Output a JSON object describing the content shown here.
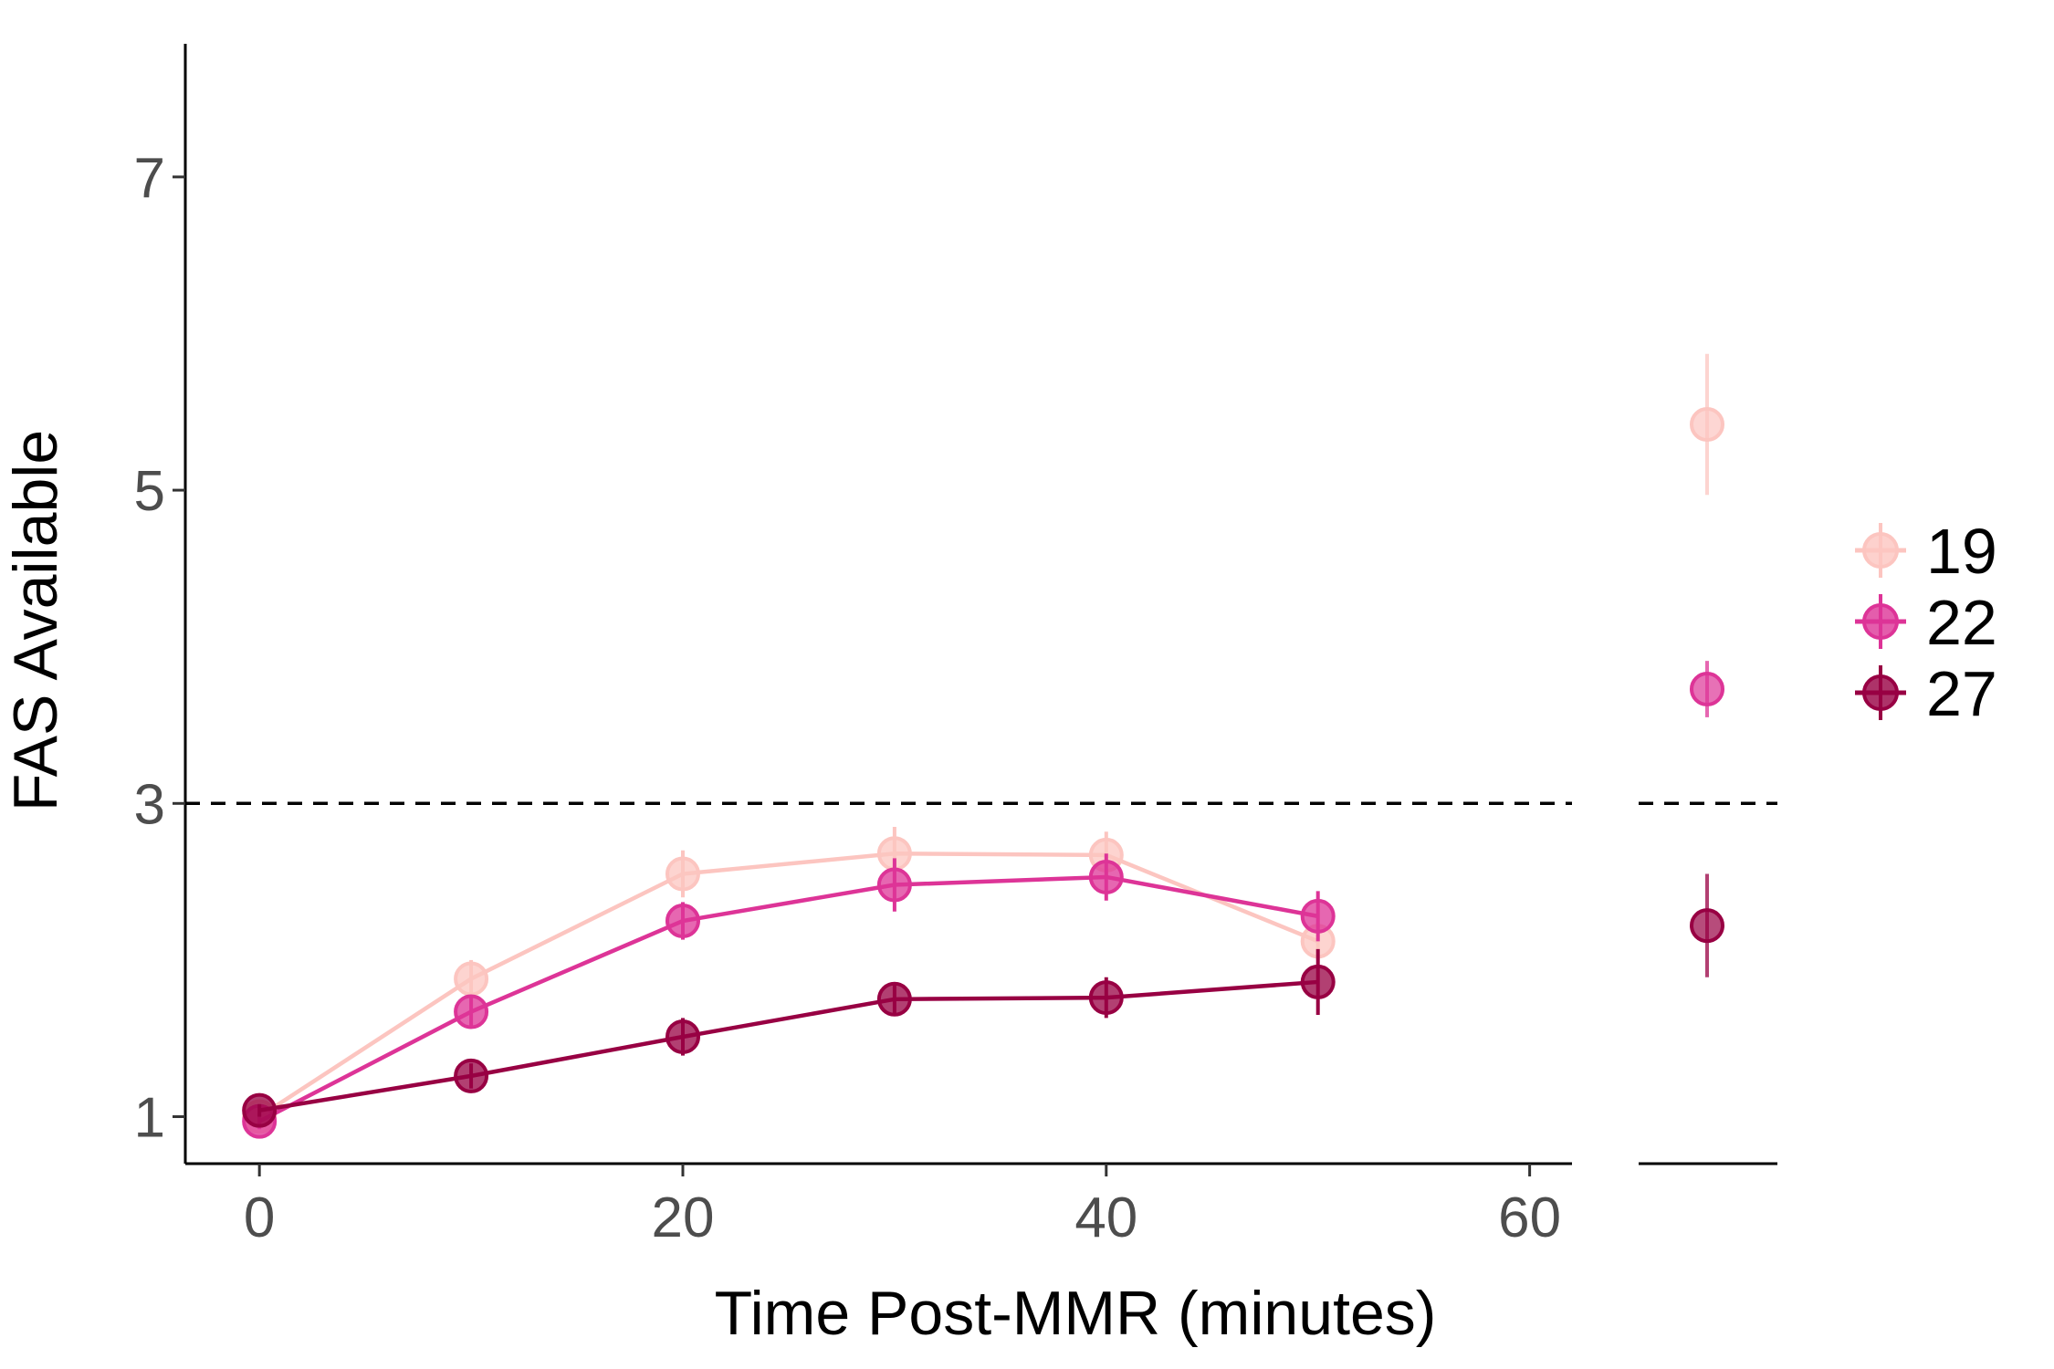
{
  "chart_data": {
    "type": "line",
    "xlabel": "Time Post-MMR (minutes)",
    "ylabel": "FAS Available",
    "xlim": [
      -3.5,
      62
    ],
    "ylim": [
      0.7,
      7.85
    ],
    "x_ticks": [
      0,
      20,
      40,
      60
    ],
    "y_ticks": [
      1,
      3,
      5,
      7
    ],
    "x_tick_labels": [
      "0",
      "20",
      "40",
      "60"
    ],
    "y_tick_labels": [
      "1",
      "3",
      "5",
      "7"
    ],
    "reference_line": {
      "y": 3,
      "style": "dashed"
    },
    "grid": false,
    "legend_position": "right",
    "series": [
      {
        "name": "19",
        "color": "#FCC5C0",
        "x": [
          0,
          10,
          20,
          30,
          40,
          50
        ],
        "y": [
          1.0,
          1.88,
          2.55,
          2.68,
          2.67,
          2.12
        ],
        "err": [
          0.05,
          0.12,
          0.15,
          0.17,
          0.15,
          0.12
        ],
        "extra_point": {
          "y": 5.42,
          "err": 0.45
        }
      },
      {
        "name": "22",
        "color": "#DD3497",
        "x": [
          0,
          10,
          20,
          30,
          40,
          50
        ],
        "y": [
          0.97,
          1.67,
          2.25,
          2.48,
          2.53,
          2.28
        ],
        "err": [
          0.05,
          0.1,
          0.12,
          0.17,
          0.15,
          0.16
        ],
        "extra_point": {
          "y": 3.73,
          "err": 0.18
        }
      },
      {
        "name": "27",
        "color": "#980043",
        "x": [
          0,
          10,
          20,
          30,
          40,
          50
        ],
        "y": [
          1.04,
          1.26,
          1.51,
          1.75,
          1.76,
          1.86
        ],
        "err": [
          0.04,
          0.08,
          0.12,
          0.1,
          0.13,
          0.21
        ],
        "extra_point": {
          "y": 2.22,
          "err": 0.33
        }
      }
    ]
  }
}
